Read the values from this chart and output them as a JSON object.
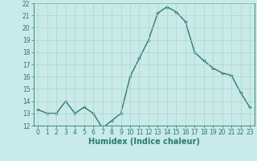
{
  "xlabel": "Humidex (Indice chaleur)",
  "ylabel": "",
  "x": [
    0,
    1,
    2,
    3,
    4,
    5,
    6,
    7,
    8,
    9,
    10,
    11,
    12,
    13,
    14,
    15,
    16,
    17,
    18,
    19,
    20,
    21,
    22,
    23
  ],
  "y": [
    13.3,
    13.0,
    13.0,
    14.0,
    13.0,
    13.5,
    13.0,
    11.8,
    12.4,
    13.0,
    16.0,
    17.5,
    19.0,
    21.2,
    21.7,
    21.3,
    20.5,
    18.0,
    17.3,
    16.7,
    16.3,
    16.1,
    14.7,
    13.5
  ],
  "line_color": "#2d7a6e",
  "marker": "D",
  "marker_size": 1.8,
  "line_width": 1.0,
  "bg_color": "#c8eae8",
  "grid_color": "#b0d4d0",
  "ylim": [
    12,
    22
  ],
  "xlim": [
    -0.5,
    23.5
  ],
  "yticks": [
    12,
    13,
    14,
    15,
    16,
    17,
    18,
    19,
    20,
    21,
    22
  ],
  "xticks": [
    0,
    1,
    2,
    3,
    4,
    5,
    6,
    7,
    8,
    9,
    10,
    11,
    12,
    13,
    14,
    15,
    16,
    17,
    18,
    19,
    20,
    21,
    22,
    23
  ],
  "tick_label_fontsize": 5.5,
  "xlabel_fontsize": 7.0,
  "tick_color": "#2d7a6e",
  "axis_color": "#2d7a6e"
}
